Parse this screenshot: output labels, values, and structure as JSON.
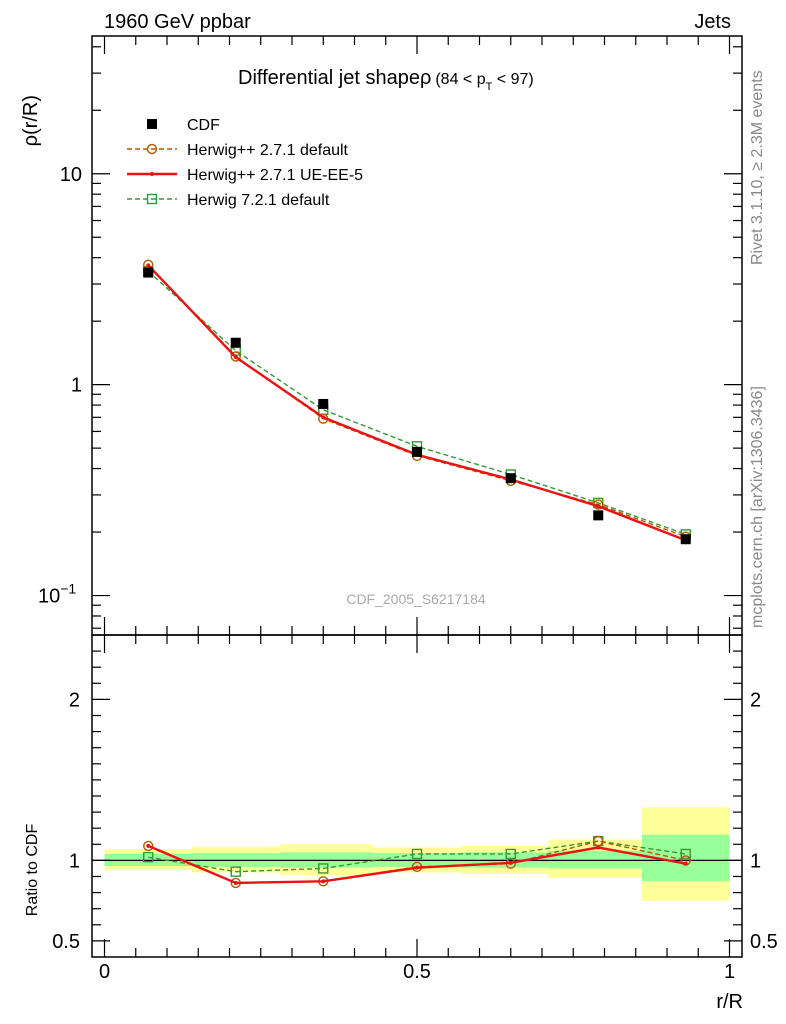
{
  "header": {
    "left": "1960 GeV ppbar",
    "right": "Jets"
  },
  "title": {
    "main": "Differential jet shapeρ",
    "range_open": "(84 < p",
    "range_sub": "T",
    "range_close": " < 97)"
  },
  "side_labels": {
    "rivet": "Rivet 3.1.10, ≥ 2.3M events",
    "mcplots": "mcplots.cern.ch [arXiv:1306.3436]"
  },
  "watermark": "CDF_2005_S6217184",
  "colors": {
    "data": "#000000",
    "herwig_default": "#b25900",
    "herwig_ue": "#ee1111",
    "herwig7": "#339933",
    "band_inner": "#99ff99",
    "band_outer": "#ffff99"
  },
  "chart_data": [
    {
      "type": "line",
      "panel": "main",
      "ylabel": "ρ(r/R)",
      "yscale": "log",
      "ylim": [
        0.065,
        45
      ],
      "xlim": [
        -0.02,
        1.02
      ],
      "y_ticks": [
        {
          "v": 0.1,
          "base": "10",
          "exp": "−1"
        },
        {
          "v": 1,
          "base": "1",
          "exp": ""
        },
        {
          "v": 10,
          "base": "10",
          "exp": ""
        }
      ],
      "legend_position": "top-left",
      "x": [
        0.07,
        0.21,
        0.35,
        0.5,
        0.65,
        0.79,
        0.93
      ],
      "series": [
        {
          "name": "CDF",
          "key": "data",
          "style": "marker-square",
          "values": [
            3.4,
            1.58,
            0.81,
            0.48,
            0.36,
            0.24,
            0.185
          ],
          "errors": [
            0.12,
            0.06,
            0.03,
            0.02,
            0.015,
            0.012,
            0.01
          ]
        },
        {
          "name": "Herwig++ 2.7.1 default",
          "key": "herwig_default",
          "style": "dashed-circle",
          "values": [
            3.7,
            1.36,
            0.69,
            0.46,
            0.35,
            0.27,
            0.19
          ]
        },
        {
          "name": "Herwig++ 2.7.1 UE-EE-5",
          "key": "herwig_ue",
          "style": "solid",
          "values": [
            3.68,
            1.35,
            0.7,
            0.465,
            0.355,
            0.265,
            0.183
          ]
        },
        {
          "name": "Herwig 7.2.1 default",
          "key": "herwig7",
          "style": "dashed-square",
          "values": [
            3.45,
            1.45,
            0.76,
            0.51,
            0.375,
            0.275,
            0.195
          ]
        }
      ]
    },
    {
      "type": "line",
      "panel": "ratio",
      "ylabel": "Ratio to CDF",
      "xlabel": "r/R",
      "ylim": [
        0.4,
        2.4
      ],
      "y_ticks": [
        0.5,
        1,
        2
      ],
      "y_tick_labels": [
        "0.5",
        "1",
        "2"
      ],
      "x_ticks": [
        0,
        0.5,
        1
      ],
      "x_tick_labels": [
        "0",
        "0.5",
        "1"
      ],
      "band_bins": [
        {
          "x0": 0.0,
          "x1": 0.14,
          "inner": [
            0.965,
            1.04
          ],
          "outer": [
            0.94,
            1.07
          ]
        },
        {
          "x0": 0.14,
          "x1": 0.28,
          "inner": [
            0.96,
            1.045
          ],
          "outer": [
            0.925,
            1.085
          ]
        },
        {
          "x0": 0.28,
          "x1": 0.43,
          "inner": [
            0.955,
            1.05
          ],
          "outer": [
            0.91,
            1.1
          ]
        },
        {
          "x0": 0.43,
          "x1": 0.57,
          "inner": [
            0.96,
            1.045
          ],
          "outer": [
            0.925,
            1.08
          ]
        },
        {
          "x0": 0.57,
          "x1": 0.71,
          "inner": [
            0.955,
            1.05
          ],
          "outer": [
            0.915,
            1.09
          ]
        },
        {
          "x0": 0.71,
          "x1": 0.86,
          "inner": [
            0.95,
            1.06
          ],
          "outer": [
            0.89,
            1.13
          ]
        },
        {
          "x0": 0.86,
          "x1": 1.0,
          "inner": [
            0.87,
            1.16
          ],
          "outer": [
            0.75,
            1.33
          ]
        }
      ],
      "series": [
        {
          "key": "herwig_default",
          "style": "dashed-circle",
          "values": [
            1.09,
            0.86,
            0.87,
            0.96,
            0.98,
            1.12,
            1.0
          ]
        },
        {
          "key": "herwig_ue",
          "style": "solid",
          "values": [
            1.09,
            0.86,
            0.87,
            0.955,
            0.985,
            1.08,
            0.98
          ]
        },
        {
          "key": "herwig7",
          "style": "dashed-square",
          "values": [
            1.02,
            0.93,
            0.95,
            1.04,
            1.04,
            1.12,
            1.04
          ]
        }
      ]
    }
  ]
}
